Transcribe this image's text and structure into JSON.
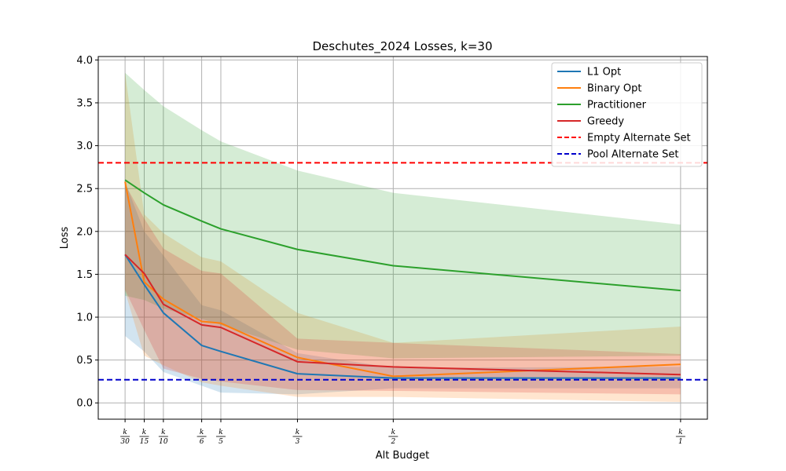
{
  "chart_data": {
    "type": "line",
    "title": "Deschutes_2024 Losses, k=30",
    "xlabel": "Alt Budget",
    "ylabel": "Loss",
    "x": [
      1,
      2,
      3,
      5,
      6,
      10,
      15,
      30
    ],
    "x_tick_labels": [
      {
        "num": "k",
        "den": "30"
      },
      {
        "num": "k",
        "den": "15"
      },
      {
        "num": "k",
        "den": "10"
      },
      {
        "num": "k",
        "den": "6"
      },
      {
        "num": "k",
        "den": "5"
      },
      {
        "num": "k",
        "den": "3"
      },
      {
        "num": "k",
        "den": "2"
      },
      {
        "num": "k",
        "den": "1"
      }
    ],
    "xlim": [
      -0.4,
      31.4
    ],
    "ylim": [
      -0.19,
      4.04
    ],
    "y_ticks": [
      "0.0",
      "0.5",
      "1.0",
      "1.5",
      "2.0",
      "2.5",
      "3.0",
      "3.5",
      "4.0"
    ],
    "y_tick_values": [
      0.0,
      0.5,
      1.0,
      1.5,
      2.0,
      2.5,
      3.0,
      3.5,
      4.0
    ],
    "grid": true,
    "legend_position": "top-right",
    "series": [
      {
        "name": "L1 Opt",
        "color": "#1f77b4",
        "values": [
          1.73,
          1.38,
          1.05,
          0.67,
          0.6,
          0.34,
          0.29,
          0.29
        ],
        "lower": [
          0.78,
          0.6,
          0.36,
          0.2,
          0.12,
          0.1,
          0.17,
          0.17
        ],
        "upper": [
          2.58,
          2.0,
          1.72,
          1.14,
          1.08,
          0.58,
          0.41,
          0.42
        ]
      },
      {
        "name": "Binary Opt",
        "color": "#ff7f0e",
        "values": [
          2.58,
          1.41,
          1.21,
          0.95,
          0.93,
          0.53,
          0.31,
          0.45
        ],
        "lower": [
          1.3,
          0.55,
          0.44,
          0.24,
          0.2,
          0.07,
          0.07,
          0.01
        ],
        "upper": [
          3.85,
          2.2,
          1.98,
          1.7,
          1.65,
          1.05,
          0.7,
          0.89
        ]
      },
      {
        "name": "Practitioner",
        "color": "#2ca02c",
        "values": [
          2.6,
          2.45,
          2.31,
          2.12,
          2.03,
          1.79,
          1.6,
          1.31
        ],
        "lower": [
          1.25,
          1.2,
          1.1,
          0.98,
          0.91,
          0.62,
          0.52,
          0.55
        ],
        "upper": [
          3.85,
          3.65,
          3.46,
          3.18,
          3.05,
          2.71,
          2.45,
          2.08
        ]
      },
      {
        "name": "Greedy",
        "color": "#d62728",
        "values": [
          1.73,
          1.51,
          1.15,
          0.91,
          0.88,
          0.48,
          0.42,
          0.33
        ],
        "lower": [
          1.32,
          0.85,
          0.4,
          0.28,
          0.25,
          0.15,
          0.14,
          0.1
        ],
        "upper": [
          2.55,
          2.15,
          1.8,
          1.54,
          1.51,
          0.75,
          0.7,
          0.57
        ]
      }
    ],
    "reference_lines": [
      {
        "name": "Empty Alternate Set",
        "y": 2.8,
        "color": "#ff0000",
        "dash": "dashed"
      },
      {
        "name": "Pool Alternate Set",
        "y": 0.27,
        "color": "#0000cc",
        "dash": "dashed"
      }
    ]
  }
}
